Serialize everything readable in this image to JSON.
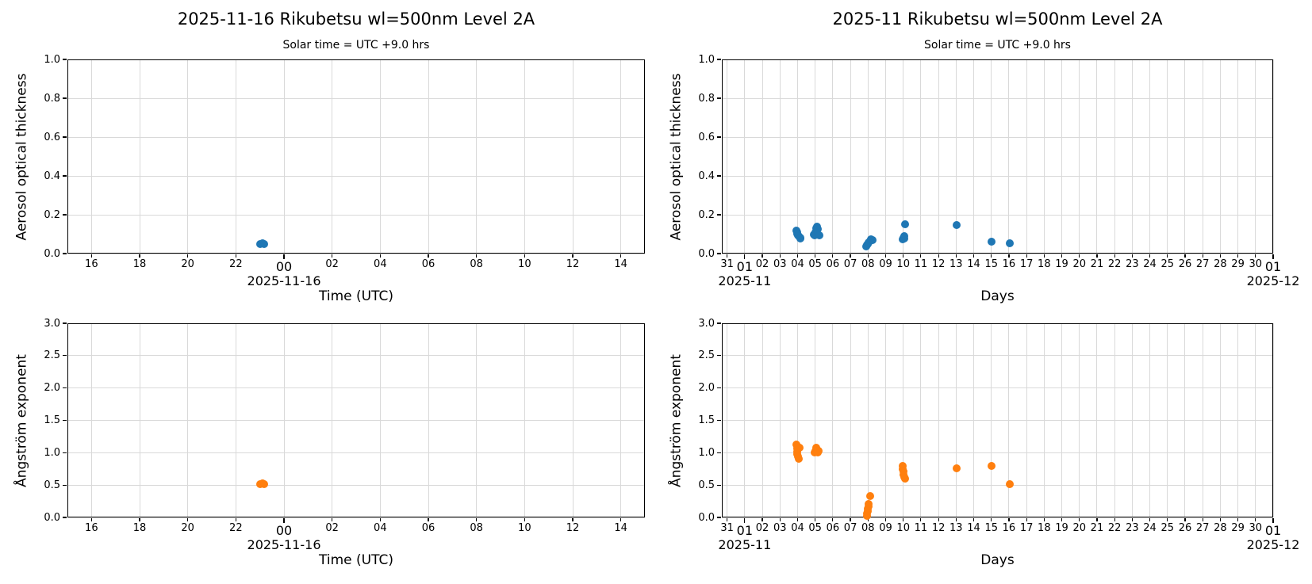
{
  "figure": {
    "background": "#ffffff",
    "description": "Four-panel scatter figure of sun-photometer aerosol data at Rikubetsu"
  },
  "colors": {
    "aot_marker": "#1f77b4",
    "angstrom_marker": "#ff7f0e",
    "grid": "#d9d9d9",
    "spine": "#000000",
    "text": "#000000"
  },
  "chart_data": [
    {
      "id": "aot-day",
      "type": "scatter",
      "title": "2025-11-16  Rikubetsu  wl=500nm  Level 2A",
      "subtitle": "Solar time = UTC +9.0 hrs",
      "xlabel": "Time (UTC)",
      "ylabel": "Aerosol optical thickness",
      "xlim": [
        15,
        39
      ],
      "ylim": [
        0.0,
        1.0
      ],
      "grid": true,
      "legend": "none",
      "xticks": [
        {
          "v": 16,
          "label": "16"
        },
        {
          "v": 18,
          "label": "18"
        },
        {
          "v": 20,
          "label": "20"
        },
        {
          "v": 22,
          "label": "22"
        },
        {
          "v": 24,
          "label": "00",
          "major": true
        },
        {
          "v": 26,
          "label": "02"
        },
        {
          "v": 28,
          "label": "04"
        },
        {
          "v": 30,
          "label": "06"
        },
        {
          "v": 32,
          "label": "08"
        },
        {
          "v": 34,
          "label": "10"
        },
        {
          "v": 36,
          "label": "12"
        },
        {
          "v": 38,
          "label": "14"
        }
      ],
      "yticks": [
        {
          "v": 0.0,
          "label": "0.0"
        },
        {
          "v": 0.2,
          "label": "0.2"
        },
        {
          "v": 0.4,
          "label": "0.4"
        },
        {
          "v": 0.6,
          "label": "0.6"
        },
        {
          "v": 0.8,
          "label": "0.8"
        },
        {
          "v": 1.0,
          "label": "1.0"
        }
      ],
      "date_labels": [
        {
          "v": 24,
          "text": "2025-11-16"
        }
      ],
      "marker_color": "#1f77b4",
      "points": [
        [
          23.02,
          0.05
        ],
        [
          23.1,
          0.053
        ],
        [
          23.18,
          0.048
        ]
      ]
    },
    {
      "id": "aot-month",
      "type": "scatter",
      "title": "2025-11  Rikubetsu  wl=500nm  Level 2A",
      "subtitle": "Solar time = UTC +9.0 hrs",
      "xlabel": "Days",
      "ylabel": "Aerosol optical thickness",
      "xlim": [
        -0.3,
        31
      ],
      "ylim": [
        0.0,
        1.0
      ],
      "grid": true,
      "legend": "none",
      "xticks": [
        {
          "v": 0,
          "label": "31"
        },
        {
          "v": 1,
          "label": "01",
          "major": true
        },
        {
          "v": 2,
          "label": "02"
        },
        {
          "v": 3,
          "label": "03"
        },
        {
          "v": 4,
          "label": "04"
        },
        {
          "v": 5,
          "label": "05"
        },
        {
          "v": 6,
          "label": "06"
        },
        {
          "v": 7,
          "label": "07"
        },
        {
          "v": 8,
          "label": "08"
        },
        {
          "v": 9,
          "label": "09"
        },
        {
          "v": 10,
          "label": "10"
        },
        {
          "v": 11,
          "label": "11"
        },
        {
          "v": 12,
          "label": "12"
        },
        {
          "v": 13,
          "label": "13"
        },
        {
          "v": 14,
          "label": "14"
        },
        {
          "v": 15,
          "label": "15"
        },
        {
          "v": 16,
          "label": "16"
        },
        {
          "v": 17,
          "label": "17"
        },
        {
          "v": 18,
          "label": "18"
        },
        {
          "v": 19,
          "label": "19"
        },
        {
          "v": 20,
          "label": "20"
        },
        {
          "v": 21,
          "label": "21"
        },
        {
          "v": 22,
          "label": "22"
        },
        {
          "v": 23,
          "label": "23"
        },
        {
          "v": 24,
          "label": "24"
        },
        {
          "v": 25,
          "label": "25"
        },
        {
          "v": 26,
          "label": "26"
        },
        {
          "v": 27,
          "label": "27"
        },
        {
          "v": 28,
          "label": "28"
        },
        {
          "v": 29,
          "label": "29"
        },
        {
          "v": 30,
          "label": "30"
        },
        {
          "v": 31,
          "label": "01",
          "major": true
        }
      ],
      "yticks": [
        {
          "v": 0.0,
          "label": "0.0"
        },
        {
          "v": 0.2,
          "label": "0.2"
        },
        {
          "v": 0.4,
          "label": "0.4"
        },
        {
          "v": 0.6,
          "label": "0.6"
        },
        {
          "v": 0.8,
          "label": "0.8"
        },
        {
          "v": 1.0,
          "label": "1.0"
        }
      ],
      "date_labels": [
        {
          "v": 1,
          "text": "2025-11"
        },
        {
          "v": 31,
          "text": "2025-12"
        }
      ],
      "marker_color": "#1f77b4",
      "points": [
        [
          3.95,
          0.118
        ],
        [
          3.97,
          0.11
        ],
        [
          4.0,
          0.103
        ],
        [
          4.03,
          0.095
        ],
        [
          4.08,
          0.088
        ],
        [
          4.15,
          0.082
        ],
        [
          4.18,
          0.078
        ],
        [
          4.93,
          0.1
        ],
        [
          4.97,
          0.093
        ],
        [
          5.02,
          0.11
        ],
        [
          5.05,
          0.132
        ],
        [
          5.1,
          0.138
        ],
        [
          5.13,
          0.125
        ],
        [
          5.17,
          0.098
        ],
        [
          5.22,
          0.095
        ],
        [
          7.88,
          0.038
        ],
        [
          7.92,
          0.044
        ],
        [
          7.97,
          0.05
        ],
        [
          8.02,
          0.058
        ],
        [
          8.1,
          0.066
        ],
        [
          8.18,
          0.073
        ],
        [
          8.25,
          0.07
        ],
        [
          9.97,
          0.075
        ],
        [
          10.0,
          0.082
        ],
        [
          10.05,
          0.09
        ],
        [
          10.08,
          0.078
        ],
        [
          10.1,
          0.15
        ],
        [
          13.05,
          0.145
        ],
        [
          15.0,
          0.063
        ],
        [
          16.05,
          0.053
        ]
      ]
    },
    {
      "id": "angstrom-day",
      "type": "scatter",
      "title": "",
      "subtitle": "",
      "xlabel": "Time (UTC)",
      "ylabel": "Ångström exponent",
      "xlim": [
        15,
        39
      ],
      "ylim": [
        0.0,
        3.0
      ],
      "grid": true,
      "legend": "none",
      "xticks": [
        {
          "v": 16,
          "label": "16"
        },
        {
          "v": 18,
          "label": "18"
        },
        {
          "v": 20,
          "label": "20"
        },
        {
          "v": 22,
          "label": "22"
        },
        {
          "v": 24,
          "label": "00",
          "major": true
        },
        {
          "v": 26,
          "label": "02"
        },
        {
          "v": 28,
          "label": "04"
        },
        {
          "v": 30,
          "label": "06"
        },
        {
          "v": 32,
          "label": "08"
        },
        {
          "v": 34,
          "label": "10"
        },
        {
          "v": 36,
          "label": "12"
        },
        {
          "v": 38,
          "label": "14"
        }
      ],
      "yticks": [
        {
          "v": 0.0,
          "label": "0.0"
        },
        {
          "v": 0.5,
          "label": "0.5"
        },
        {
          "v": 1.0,
          "label": "1.0"
        },
        {
          "v": 1.5,
          "label": "1.5"
        },
        {
          "v": 2.0,
          "label": "2.0"
        },
        {
          "v": 2.5,
          "label": "2.5"
        },
        {
          "v": 3.0,
          "label": "3.0"
        }
      ],
      "date_labels": [
        {
          "v": 24,
          "text": "2025-11-16"
        }
      ],
      "marker_color": "#ff7f0e",
      "points": [
        [
          23.02,
          0.52
        ],
        [
          23.1,
          0.53
        ],
        [
          23.18,
          0.52
        ]
      ]
    },
    {
      "id": "angstrom-month",
      "type": "scatter",
      "title": "",
      "subtitle": "",
      "xlabel": "Days",
      "ylabel": "Ångström exponent",
      "xlim": [
        -0.3,
        31
      ],
      "ylim": [
        0.0,
        3.0
      ],
      "grid": true,
      "legend": "none",
      "xticks": [
        {
          "v": 0,
          "label": "31"
        },
        {
          "v": 1,
          "label": "01",
          "major": true
        },
        {
          "v": 2,
          "label": "02"
        },
        {
          "v": 3,
          "label": "03"
        },
        {
          "v": 4,
          "label": "04"
        },
        {
          "v": 5,
          "label": "05"
        },
        {
          "v": 6,
          "label": "06"
        },
        {
          "v": 7,
          "label": "07"
        },
        {
          "v": 8,
          "label": "08"
        },
        {
          "v": 9,
          "label": "09"
        },
        {
          "v": 10,
          "label": "10"
        },
        {
          "v": 11,
          "label": "11"
        },
        {
          "v": 12,
          "label": "12"
        },
        {
          "v": 13,
          "label": "13"
        },
        {
          "v": 14,
          "label": "14"
        },
        {
          "v": 15,
          "label": "15"
        },
        {
          "v": 16,
          "label": "16"
        },
        {
          "v": 17,
          "label": "17"
        },
        {
          "v": 18,
          "label": "18"
        },
        {
          "v": 19,
          "label": "19"
        },
        {
          "v": 20,
          "label": "20"
        },
        {
          "v": 21,
          "label": "21"
        },
        {
          "v": 22,
          "label": "22"
        },
        {
          "v": 23,
          "label": "23"
        },
        {
          "v": 24,
          "label": "24"
        },
        {
          "v": 25,
          "label": "25"
        },
        {
          "v": 26,
          "label": "26"
        },
        {
          "v": 27,
          "label": "27"
        },
        {
          "v": 28,
          "label": "28"
        },
        {
          "v": 29,
          "label": "29"
        },
        {
          "v": 30,
          "label": "30"
        },
        {
          "v": 31,
          "label": "01",
          "major": true
        }
      ],
      "yticks": [
        {
          "v": 0.0,
          "label": "0.0"
        },
        {
          "v": 0.5,
          "label": "0.5"
        },
        {
          "v": 1.0,
          "label": "1.0"
        },
        {
          "v": 1.5,
          "label": "1.5"
        },
        {
          "v": 2.0,
          "label": "2.0"
        },
        {
          "v": 2.5,
          "label": "2.5"
        },
        {
          "v": 3.0,
          "label": "3.0"
        }
      ],
      "date_labels": [
        {
          "v": 1,
          "text": "2025-11"
        },
        {
          "v": 31,
          "text": "2025-12"
        }
      ],
      "marker_color": "#ff7f0e",
      "points": [
        [
          3.95,
          1.13
        ],
        [
          3.96,
          1.1
        ],
        [
          3.98,
          1.06
        ],
        [
          4.0,
          1.02
        ],
        [
          4.0,
          0.98
        ],
        [
          4.03,
          0.94
        ],
        [
          4.07,
          0.91
        ],
        [
          4.1,
          1.08
        ],
        [
          4.95,
          1.0
        ],
        [
          5.0,
          1.03
        ],
        [
          5.05,
          1.08
        ],
        [
          5.1,
          1.04
        ],
        [
          5.15,
          1.0
        ],
        [
          5.2,
          1.03
        ],
        [
          7.92,
          0.02
        ],
        [
          7.95,
          0.06
        ],
        [
          7.98,
          0.1
        ],
        [
          8.0,
          0.14
        ],
        [
          8.02,
          0.17
        ],
        [
          8.05,
          0.21
        ],
        [
          8.1,
          0.33
        ],
        [
          9.95,
          0.79
        ],
        [
          9.98,
          0.75
        ],
        [
          10.0,
          0.71
        ],
        [
          10.03,
          0.66
        ],
        [
          10.06,
          0.63
        ],
        [
          10.1,
          0.6
        ],
        [
          13.05,
          0.76
        ],
        [
          15.0,
          0.79
        ],
        [
          16.05,
          0.52
        ]
      ]
    }
  ]
}
